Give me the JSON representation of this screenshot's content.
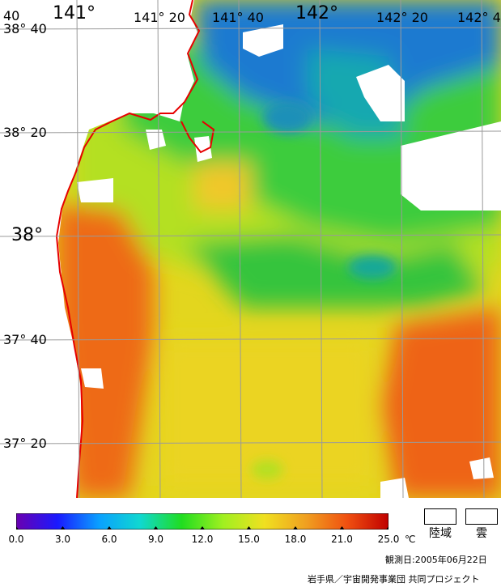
{
  "map": {
    "lon_labels": [
      "141°",
      "141° 20",
      "141° 40",
      "142°",
      "142° 20",
      "142° 4"
    ],
    "lat_labels": [
      "38° 40",
      "38° 20",
      "38°",
      "37° 40",
      "37° 20"
    ],
    "corner_label": "40"
  },
  "legend": {
    "ticks": [
      "0.0",
      "3.0",
      "6.0",
      "9.0",
      "12.0",
      "15.0",
      "18.0",
      "21.0",
      "25.0"
    ],
    "unit": "℃",
    "land_label": "陸域",
    "cloud_label": "雲",
    "colors": [
      "#6a00b0",
      "#1a1aff",
      "#0aa0ff",
      "#10d8d0",
      "#20dd20",
      "#a0f020",
      "#f0e020",
      "#f0a020",
      "#f05010",
      "#c00000"
    ]
  },
  "footer": {
    "date": "観測日:2005年06月22日",
    "credit": "岩手県／宇宙開発事業団 共同プロジェクト"
  }
}
